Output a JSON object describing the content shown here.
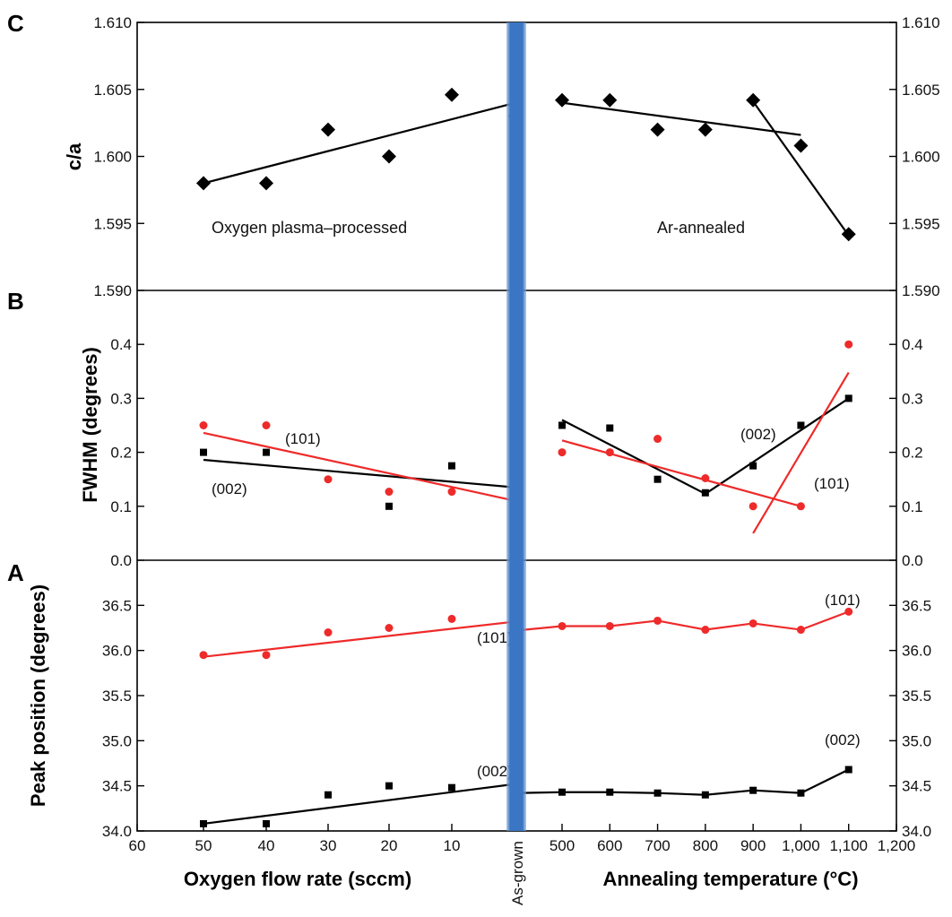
{
  "colors": {
    "black_series": "#000000",
    "red_series": "#ee2a2a",
    "divider": "#3a76c4"
  },
  "x_axis": {
    "left_ticks": [
      "60",
      "50",
      "40",
      "30",
      "20",
      "10"
    ],
    "left_title": "Oxygen flow rate (sccm)",
    "center_label": "As-grown",
    "right_ticks": [
      "500",
      "600",
      "700",
      "800",
      "900",
      "1,000",
      "1,100",
      "1,200"
    ],
    "right_title": "Annealing temperature (°C)"
  },
  "chart_data": [
    {
      "panel": "C",
      "type": "scatter",
      "ylabel": "c/a",
      "ylim": [
        1.59,
        1.61
      ],
      "yticks": [
        "1.590",
        "1.595",
        "1.600",
        "1.605",
        "1.610"
      ],
      "marker": "diamond",
      "annotations": [
        "Oxygen plasma–processed",
        "Ar-annealed"
      ],
      "series": [
        {
          "color": "#000000",
          "points": [
            {
              "x": "50 sccm",
              "y": 1.598
            },
            {
              "x": "40 sccm",
              "y": 1.598
            },
            {
              "x": "30 sccm",
              "y": 1.602
            },
            {
              "x": "20 sccm",
              "y": 1.6
            },
            {
              "x": "10 sccm",
              "y": 1.6046
            },
            {
              "x": "As-grown",
              "y": 1.603
            },
            {
              "x": "500 °C",
              "y": 1.6042
            },
            {
              "x": "600 °C",
              "y": 1.6042
            },
            {
              "x": "700 °C",
              "y": 1.602
            },
            {
              "x": "800 °C",
              "y": 1.602
            },
            {
              "x": "900 °C",
              "y": 1.6042
            },
            {
              "x": "1,000 °C",
              "y": 1.6008
            },
            {
              "x": "1,100 °C",
              "y": 1.5942
            }
          ],
          "fit_lines": [
            [
              {
                "x": "50 sccm",
                "y": 1.598
              },
              {
                "x": "As-grown",
                "y": 1.604
              }
            ],
            [
              {
                "x": "500 °C",
                "y": 1.604
              },
              {
                "x": "1,000 °C",
                "y": 1.6016
              }
            ],
            [
              {
                "x": "900 °C",
                "y": 1.6041
              },
              {
                "x": "1,100 °C",
                "y": 1.5941
              }
            ]
          ]
        }
      ]
    },
    {
      "panel": "B",
      "type": "scatter",
      "ylabel": "FWHM (degrees)",
      "ylim": [
        0.0,
        0.5
      ],
      "yticks": [
        "0.0",
        "0.1",
        "0.2",
        "0.3",
        "0.4"
      ],
      "annotations": [
        "(101)",
        "(002)",
        "(002)",
        "(101)"
      ],
      "series": [
        {
          "name": "(002)",
          "color": "#000000",
          "marker": "square",
          "points": [
            {
              "x": "50 sccm",
              "y": 0.2
            },
            {
              "x": "40 sccm",
              "y": 0.2
            },
            {
              "x": "20 sccm",
              "y": 0.1
            },
            {
              "x": "10 sccm",
              "y": 0.175
            },
            {
              "x": "500 °C",
              "y": 0.25
            },
            {
              "x": "600 °C",
              "y": 0.245
            },
            {
              "x": "700 °C",
              "y": 0.15
            },
            {
              "x": "800 °C",
              "y": 0.125
            },
            {
              "x": "900 °C",
              "y": 0.175
            },
            {
              "x": "1,000 °C",
              "y": 0.25
            },
            {
              "x": "1,100 °C",
              "y": 0.3
            }
          ],
          "fit_lines": [
            [
              {
                "x": "50 sccm",
                "y": 0.186
              },
              {
                "x": "As-grown",
                "y": 0.135
              }
            ],
            [
              {
                "x": "500 °C",
                "y": 0.26
              },
              {
                "x": "800 °C",
                "y": 0.123
              }
            ],
            [
              {
                "x": "800 °C",
                "y": 0.123
              },
              {
                "x": "1,100 °C",
                "y": 0.3
              }
            ]
          ]
        },
        {
          "name": "(101)",
          "color": "#ee2a2a",
          "marker": "circle",
          "points": [
            {
              "x": "50 sccm",
              "y": 0.25
            },
            {
              "x": "40 sccm",
              "y": 0.25
            },
            {
              "x": "30 sccm",
              "y": 0.15
            },
            {
              "x": "20 sccm",
              "y": 0.127
            },
            {
              "x": "10 sccm",
              "y": 0.127
            },
            {
              "x": "As-grown",
              "y": 0.15
            },
            {
              "x": "500 °C",
              "y": 0.2
            },
            {
              "x": "600 °C",
              "y": 0.2
            },
            {
              "x": "700 °C",
              "y": 0.225
            },
            {
              "x": "800 °C",
              "y": 0.152
            },
            {
              "x": "900 °C",
              "y": 0.1
            },
            {
              "x": "1,000 °C",
              "y": 0.1
            },
            {
              "x": "1,100 °C",
              "y": 0.4
            }
          ],
          "fit_lines": [
            [
              {
                "x": "50 sccm",
                "y": 0.236
              },
              {
                "x": "As-grown",
                "y": 0.11
              }
            ],
            [
              {
                "x": "500 °C",
                "y": 0.222
              },
              {
                "x": "1,000 °C",
                "y": 0.1
              }
            ],
            [
              {
                "x": "900 °C",
                "y": 0.05
              },
              {
                "x": "1,100 °C",
                "y": 0.348
              }
            ]
          ]
        }
      ]
    },
    {
      "panel": "A",
      "type": "line",
      "ylabel": "Peak position (degrees)",
      "ylim": [
        34.0,
        37.0
      ],
      "yticks": [
        "34.0",
        "34.5",
        "35.0",
        "35.5",
        "36.0",
        "36.5"
      ],
      "annotations": [
        "(101)",
        "(101)",
        "(002)",
        "(002)"
      ],
      "series": [
        {
          "name": "(101)",
          "color": "#ee2a2a",
          "marker": "circle",
          "points": [
            {
              "x": "50 sccm",
              "y": 35.95
            },
            {
              "x": "40 sccm",
              "y": 35.95
            },
            {
              "x": "30 sccm",
              "y": 36.2
            },
            {
              "x": "20 sccm",
              "y": 36.25
            },
            {
              "x": "10 sccm",
              "y": 36.35
            },
            {
              "x": "As-grown",
              "y": 36.22
            },
            {
              "x": "500 °C",
              "y": 36.27
            },
            {
              "x": "600 °C",
              "y": 36.27
            },
            {
              "x": "700 °C",
              "y": 36.33
            },
            {
              "x": "800 °C",
              "y": 36.23
            },
            {
              "x": "900 °C",
              "y": 36.3
            },
            {
              "x": "1,000 °C",
              "y": 36.23
            },
            {
              "x": "1,100 °C",
              "y": 36.43
            }
          ],
          "fit_lines": [
            [
              {
                "x": "50 sccm",
                "y": 35.93
              },
              {
                "x": "As-grown",
                "y": 36.32
              }
            ]
          ]
        },
        {
          "name": "(002)",
          "color": "#000000",
          "marker": "square",
          "points": [
            {
              "x": "50 sccm",
              "y": 34.08
            },
            {
              "x": "40 sccm",
              "y": 34.08
            },
            {
              "x": "30 sccm",
              "y": 34.4
            },
            {
              "x": "20 sccm",
              "y": 34.5
            },
            {
              "x": "10 sccm",
              "y": 34.48
            },
            {
              "x": "As-grown",
              "y": 34.42
            },
            {
              "x": "500 °C",
              "y": 34.43
            },
            {
              "x": "600 °C",
              "y": 34.43
            },
            {
              "x": "700 °C",
              "y": 34.42
            },
            {
              "x": "800 °C",
              "y": 34.4
            },
            {
              "x": "900 °C",
              "y": 34.45
            },
            {
              "x": "1,000 °C",
              "y": 34.42
            },
            {
              "x": "1,100 °C",
              "y": 34.68
            }
          ],
          "fit_lines": [
            [
              {
                "x": "50 sccm",
                "y": 34.08
              },
              {
                "x": "As-grown",
                "y": 34.52
              }
            ]
          ]
        }
      ]
    }
  ]
}
